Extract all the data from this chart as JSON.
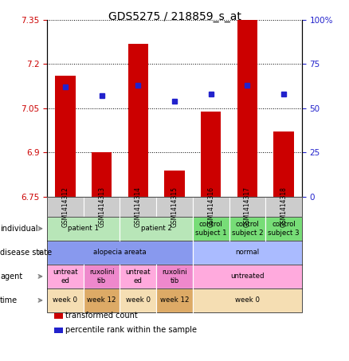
{
  "title": "GDS5275 / 218859_s_at",
  "samples": [
    "GSM1414312",
    "GSM1414313",
    "GSM1414314",
    "GSM1414315",
    "GSM1414316",
    "GSM1414317",
    "GSM1414318"
  ],
  "transformed_counts": [
    7.16,
    6.9,
    7.27,
    6.84,
    7.04,
    7.35,
    6.97
  ],
  "percentile_ranks": [
    62,
    57,
    63,
    54,
    58,
    63,
    58
  ],
  "ylim_left": [
    6.75,
    7.35
  ],
  "ylim_right": [
    0,
    100
  ],
  "yticks_left": [
    6.75,
    6.9,
    7.05,
    7.2,
    7.35
  ],
  "yticks_right": [
    0,
    25,
    50,
    75,
    100
  ],
  "ytick_labels_left": [
    "6.75",
    "6.9",
    "7.05",
    "7.2",
    "7.35"
  ],
  "ytick_labels_right": [
    "0",
    "25",
    "50",
    "75",
    "100%"
  ],
  "bar_color": "#cc0000",
  "dot_color": "#2222cc",
  "bar_baseline": 6.75,
  "annotation_rows": [
    {
      "label": "individual",
      "cells": [
        {
          "text": "patient 1",
          "span": 2,
          "bg": "#b8e6b8",
          "border": "#55aa55"
        },
        {
          "text": "patient 2",
          "span": 2,
          "bg": "#b8e6b8",
          "border": "#55aa55"
        },
        {
          "text": "control\nsubject 1",
          "span": 1,
          "bg": "#77dd77",
          "border": "#55aa55"
        },
        {
          "text": "control\nsubject 2",
          "span": 1,
          "bg": "#77dd77",
          "border": "#55aa55"
        },
        {
          "text": "control\nsubject 3",
          "span": 1,
          "bg": "#77dd77",
          "border": "#55aa55"
        }
      ]
    },
    {
      "label": "disease state",
      "cells": [
        {
          "text": "alopecia areata",
          "span": 4,
          "bg": "#8899ee",
          "border": "#6677cc"
        },
        {
          "text": "normal",
          "span": 3,
          "bg": "#aabbff",
          "border": "#6677cc"
        }
      ]
    },
    {
      "label": "agent",
      "cells": [
        {
          "text": "untreat\ned",
          "span": 1,
          "bg": "#ffaadd",
          "border": "#cc88bb"
        },
        {
          "text": "ruxolini\ntib",
          "span": 1,
          "bg": "#ee88cc",
          "border": "#cc88bb"
        },
        {
          "text": "untreat\ned",
          "span": 1,
          "bg": "#ffaadd",
          "border": "#cc88bb"
        },
        {
          "text": "ruxolini\ntib",
          "span": 1,
          "bg": "#ee88cc",
          "border": "#cc88bb"
        },
        {
          "text": "untreated",
          "span": 3,
          "bg": "#ffaadd",
          "border": "#cc88bb"
        }
      ]
    },
    {
      "label": "time",
      "cells": [
        {
          "text": "week 0",
          "span": 1,
          "bg": "#f5deb3",
          "border": "#ccaa77"
        },
        {
          "text": "week 12",
          "span": 1,
          "bg": "#ddaa66",
          "border": "#ccaa77"
        },
        {
          "text": "week 0",
          "span": 1,
          "bg": "#f5deb3",
          "border": "#ccaa77"
        },
        {
          "text": "week 12",
          "span": 1,
          "bg": "#ddaa66",
          "border": "#ccaa77"
        },
        {
          "text": "week 0",
          "span": 3,
          "bg": "#f5deb3",
          "border": "#ccaa77"
        }
      ]
    }
  ],
  "legend": [
    {
      "color": "#cc0000",
      "label": "transformed count"
    },
    {
      "color": "#2222cc",
      "label": "percentile rank within the sample"
    }
  ],
  "sample_bg": "#cccccc",
  "plot_bg": "#ffffff",
  "tick_color_left": "#cc0000",
  "tick_color_right": "#2222cc",
  "fig_width": 4.38,
  "fig_height": 4.53,
  "dpi": 100
}
